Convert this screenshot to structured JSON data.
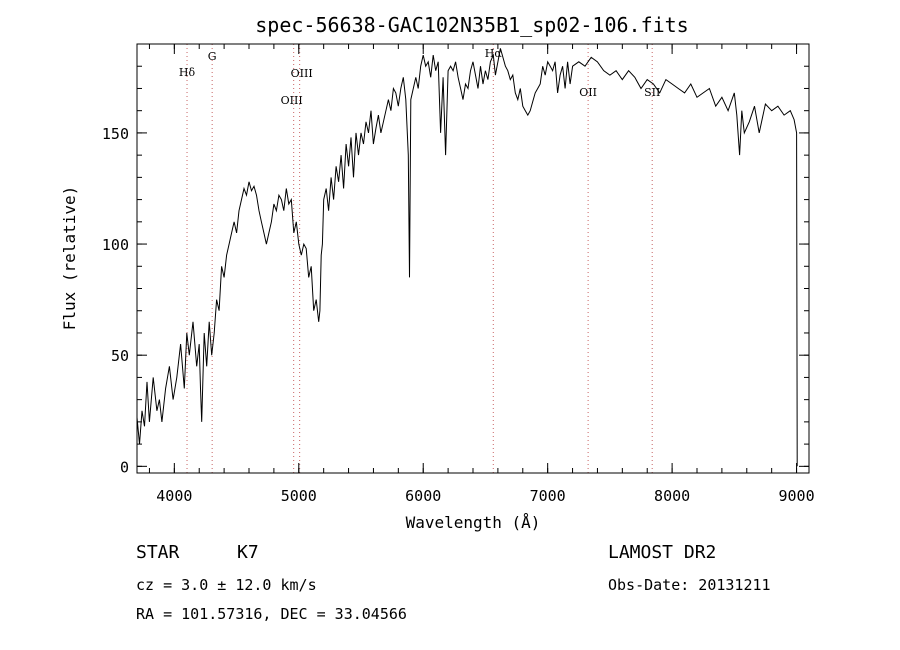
{
  "chart_data": {
    "type": "line",
    "title": "spec-56638-GAC102N35B1_sp02-106.fits",
    "xlabel": "Wavelength (Å)",
    "ylabel": "Flux (relative)",
    "xlim": [
      3700,
      9100
    ],
    "ylim": [
      -3,
      190
    ],
    "xticks": [
      4000,
      5000,
      6000,
      7000,
      8000,
      9000
    ],
    "yticks": [
      0,
      50,
      100,
      150
    ],
    "grid": false,
    "series": [
      {
        "color": "#000000",
        "x": [
          3700,
          3720,
          3740,
          3760,
          3780,
          3800,
          3830,
          3860,
          3880,
          3900,
          3930,
          3960,
          3990,
          4020,
          4050,
          4080,
          4100,
          4120,
          4150,
          4180,
          4200,
          4210,
          4220,
          4240,
          4260,
          4280,
          4300,
          4320,
          4340,
          4360,
          4380,
          4400,
          4420,
          4440,
          4460,
          4480,
          4500,
          4520,
          4540,
          4560,
          4580,
          4600,
          4620,
          4640,
          4660,
          4680,
          4700,
          4720,
          4740,
          4760,
          4780,
          4800,
          4820,
          4840,
          4860,
          4880,
          4900,
          4920,
          4940,
          4960,
          4980,
          5000,
          5020,
          5040,
          5060,
          5080,
          5100,
          5120,
          5140,
          5160,
          5170,
          5180,
          5190,
          5200,
          5220,
          5240,
          5260,
          5280,
          5300,
          5320,
          5340,
          5360,
          5380,
          5400,
          5420,
          5440,
          5460,
          5480,
          5500,
          5520,
          5540,
          5560,
          5580,
          5600,
          5620,
          5640,
          5660,
          5680,
          5700,
          5720,
          5740,
          5760,
          5780,
          5800,
          5820,
          5840,
          5860,
          5880,
          5890,
          5900,
          5920,
          5940,
          5960,
          5980,
          6000,
          6020,
          6040,
          6060,
          6080,
          6100,
          6120,
          6140,
          6160,
          6180,
          6200,
          6220,
          6240,
          6260,
          6280,
          6300,
          6320,
          6340,
          6360,
          6380,
          6400,
          6420,
          6440,
          6460,
          6480,
          6500,
          6520,
          6540,
          6563,
          6580,
          6600,
          6620,
          6640,
          6660,
          6680,
          6700,
          6720,
          6740,
          6760,
          6780,
          6800,
          6820,
          6840,
          6860,
          6880,
          6900,
          6920,
          6940,
          6960,
          6980,
          7000,
          7020,
          7040,
          7060,
          7080,
          7100,
          7120,
          7140,
          7160,
          7180,
          7200,
          7250,
          7300,
          7350,
          7400,
          7450,
          7500,
          7550,
          7600,
          7650,
          7700,
          7750,
          7800,
          7850,
          7900,
          7950,
          8000,
          8050,
          8100,
          8150,
          8200,
          8250,
          8300,
          8350,
          8400,
          8450,
          8500,
          8520,
          8542,
          8560,
          8580,
          8620,
          8662,
          8700,
          8750,
          8800,
          8850,
          8900,
          8950,
          8980,
          9000,
          9005
        ],
        "y": [
          22,
          10,
          25,
          18,
          38,
          20,
          40,
          25,
          30,
          20,
          35,
          45,
          30,
          40,
          55,
          35,
          60,
          50,
          65,
          45,
          55,
          35,
          20,
          60,
          45,
          65,
          50,
          60,
          75,
          70,
          90,
          85,
          95,
          100,
          105,
          110,
          105,
          115,
          120,
          125,
          122,
          128,
          124,
          126,
          122,
          115,
          110,
          105,
          100,
          105,
          110,
          118,
          115,
          122,
          120,
          115,
          125,
          118,
          120,
          105,
          110,
          100,
          95,
          100,
          98,
          85,
          90,
          70,
          75,
          65,
          70,
          95,
          100,
          120,
          125,
          115,
          130,
          120,
          135,
          128,
          140,
          125,
          145,
          135,
          148,
          130,
          150,
          140,
          150,
          145,
          155,
          150,
          160,
          145,
          152,
          158,
          150,
          155,
          160,
          165,
          160,
          170,
          168,
          162,
          170,
          175,
          165,
          140,
          85,
          165,
          170,
          175,
          170,
          180,
          185,
          180,
          182,
          175,
          185,
          178,
          182,
          150,
          175,
          140,
          178,
          180,
          178,
          182,
          175,
          170,
          165,
          172,
          170,
          178,
          182,
          176,
          170,
          180,
          172,
          178,
          174,
          182,
          185,
          176,
          182,
          188,
          184,
          180,
          178,
          174,
          176,
          168,
          165,
          170,
          162,
          160,
          158,
          160,
          164,
          168,
          170,
          172,
          180,
          176,
          182,
          180,
          178,
          182,
          168,
          176,
          180,
          170,
          182,
          172,
          180,
          182,
          180,
          184,
          182,
          178,
          176,
          178,
          174,
          178,
          175,
          170,
          174,
          172,
          168,
          174,
          172,
          170,
          168,
          172,
          166,
          168,
          170,
          162,
          166,
          160,
          168,
          158,
          140,
          160,
          150,
          155,
          162,
          150,
          163,
          160,
          162,
          158,
          160,
          156,
          150,
          0
        ]
      }
    ],
    "lines": [
      {
        "label": "Hδ",
        "x": 4102
      },
      {
        "label": "G",
        "x": 4304
      },
      {
        "label": "OIII",
        "x": 4959
      },
      {
        "label": "OIII",
        "x": 5007
      },
      {
        "label": "Hα",
        "x": 6563
      },
      {
        "label": "OII",
        "x": 7325
      },
      {
        "label": "SII",
        "x": 7840
      }
    ]
  },
  "info": {
    "class": "STAR",
    "subclass": "K7",
    "cz": "cz = 3.0 ± 12.0 km/s",
    "coords": "RA = 101.57316, DEC =  33.04566",
    "survey": "LAMOST DR2",
    "obsdate": "Obs-Date: 20131211"
  }
}
